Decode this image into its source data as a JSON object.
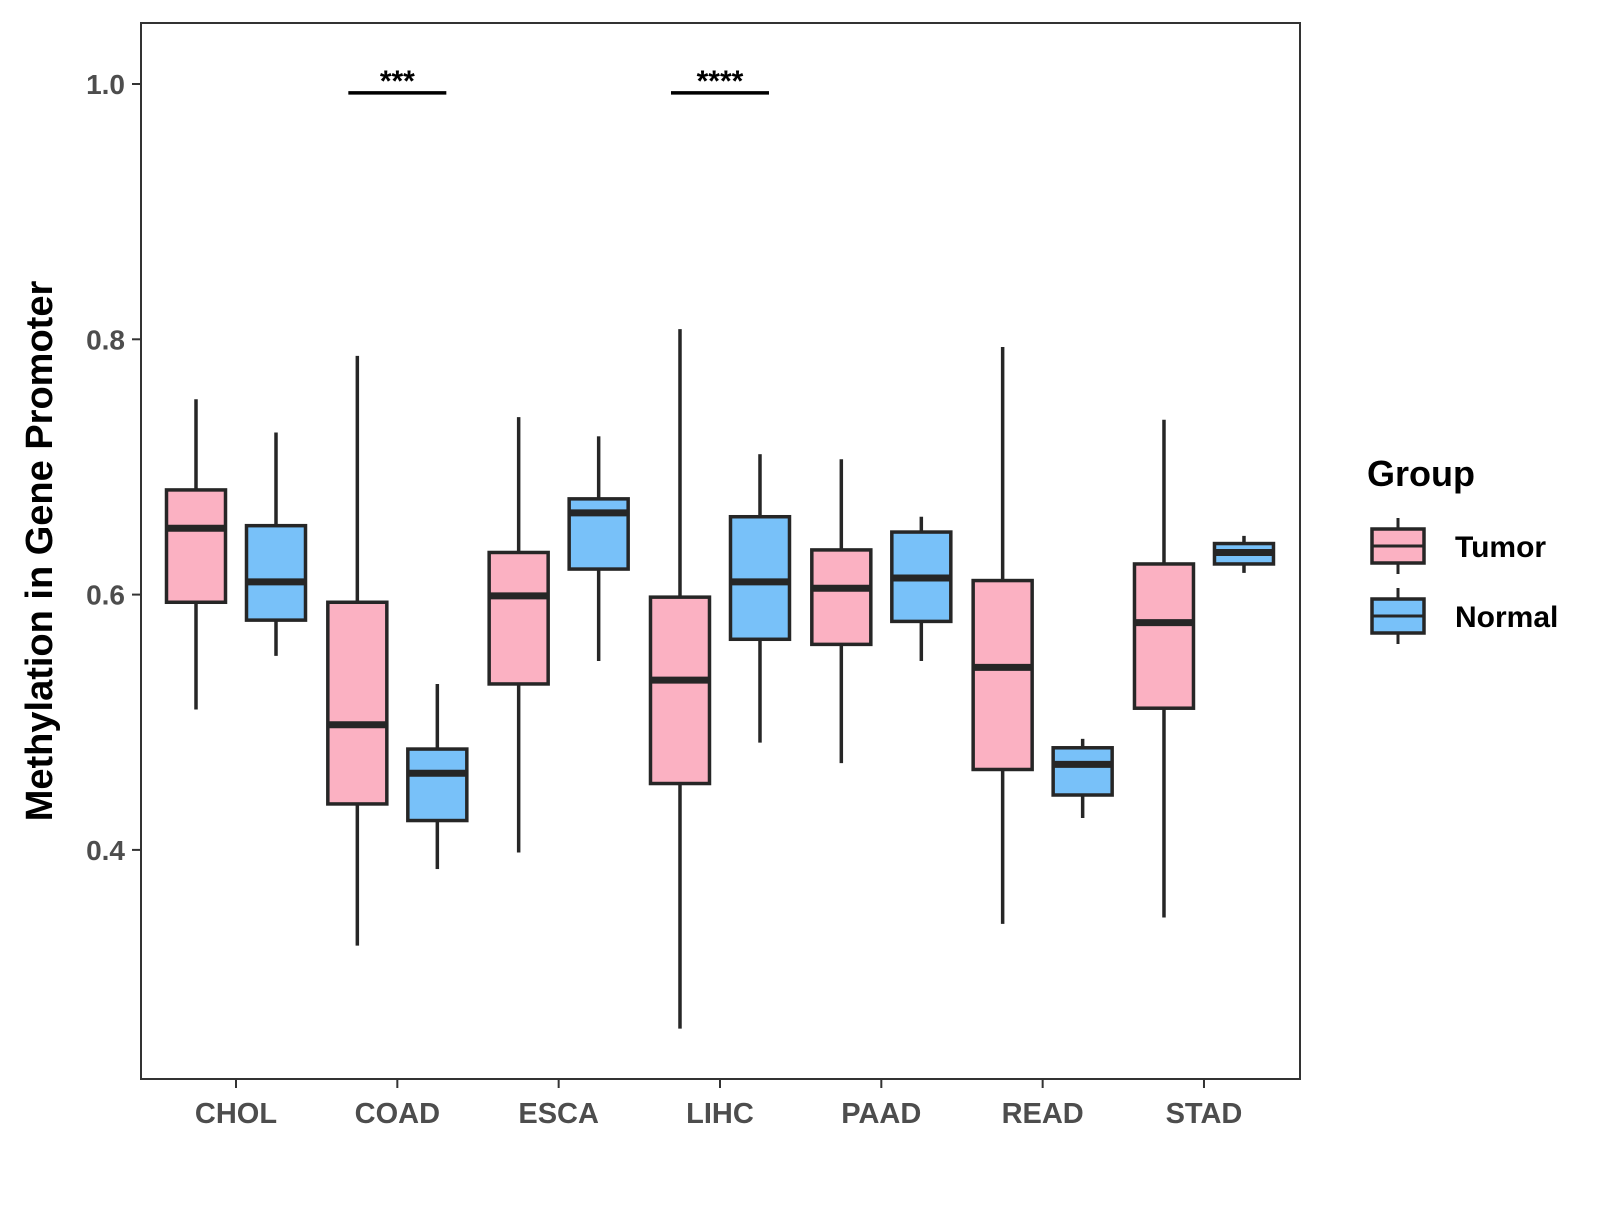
{
  "chart_data": {
    "type": "boxplot",
    "title": "",
    "xlabel": "",
    "ylabel": "Methylation in Gene Promoter",
    "ylim": [
      0.22,
      1.05
    ],
    "yticks": [
      0.4,
      0.6,
      0.8,
      1.0
    ],
    "ytick_labels": [
      "0.4",
      "0.6",
      "0.8",
      "1.0"
    ],
    "grid": false,
    "categories": [
      "CHOL",
      "COAD",
      "ESCA",
      "LIHC",
      "PAAD",
      "READ",
      "STAD"
    ],
    "series": [
      {
        "name": "Tumor",
        "color": "#FBB1C2",
        "boxes": [
          {
            "whisker_low": 0.51,
            "q1": 0.594,
            "median": 0.652,
            "q3": 0.682,
            "whisker_high": 0.753
          },
          {
            "whisker_low": 0.325,
            "q1": 0.436,
            "median": 0.498,
            "q3": 0.594,
            "whisker_high": 0.787
          },
          {
            "whisker_low": 0.398,
            "q1": 0.53,
            "median": 0.599,
            "q3": 0.633,
            "whisker_high": 0.739
          },
          {
            "whisker_low": 0.26,
            "q1": 0.452,
            "median": 0.533,
            "q3": 0.598,
            "whisker_high": 0.808
          },
          {
            "whisker_low": 0.468,
            "q1": 0.561,
            "median": 0.605,
            "q3": 0.635,
            "whisker_high": 0.706
          },
          {
            "whisker_low": 0.342,
            "q1": 0.463,
            "median": 0.543,
            "q3": 0.611,
            "whisker_high": 0.794
          },
          {
            "whisker_low": 0.347,
            "q1": 0.511,
            "median": 0.578,
            "q3": 0.624,
            "whisker_high": 0.737
          }
        ]
      },
      {
        "name": "Normal",
        "color": "#78C1F9",
        "boxes": [
          {
            "whisker_low": 0.552,
            "q1": 0.58,
            "median": 0.61,
            "q3": 0.654,
            "whisker_high": 0.727
          },
          {
            "whisker_low": 0.385,
            "q1": 0.423,
            "median": 0.46,
            "q3": 0.479,
            "whisker_high": 0.53
          },
          {
            "whisker_low": 0.548,
            "q1": 0.62,
            "median": 0.664,
            "q3": 0.675,
            "whisker_high": 0.724
          },
          {
            "whisker_low": 0.484,
            "q1": 0.565,
            "median": 0.61,
            "q3": 0.661,
            "whisker_high": 0.71
          },
          {
            "whisker_low": 0.548,
            "q1": 0.579,
            "median": 0.613,
            "q3": 0.649,
            "whisker_high": 0.661
          },
          {
            "whisker_low": 0.425,
            "q1": 0.443,
            "median": 0.467,
            "q3": 0.48,
            "whisker_high": 0.487
          },
          {
            "whisker_low": 0.617,
            "q1": 0.624,
            "median": 0.633,
            "q3": 0.64,
            "whisker_high": 0.646
          }
        ]
      }
    ],
    "significance": [
      {
        "category": "COAD",
        "label": "***",
        "y": 0.993
      },
      {
        "category": "LIHC",
        "label": "****",
        "y": 0.993
      }
    ],
    "legend": {
      "title": "Group",
      "position": "right",
      "entries": [
        "Tumor",
        "Normal"
      ]
    }
  }
}
